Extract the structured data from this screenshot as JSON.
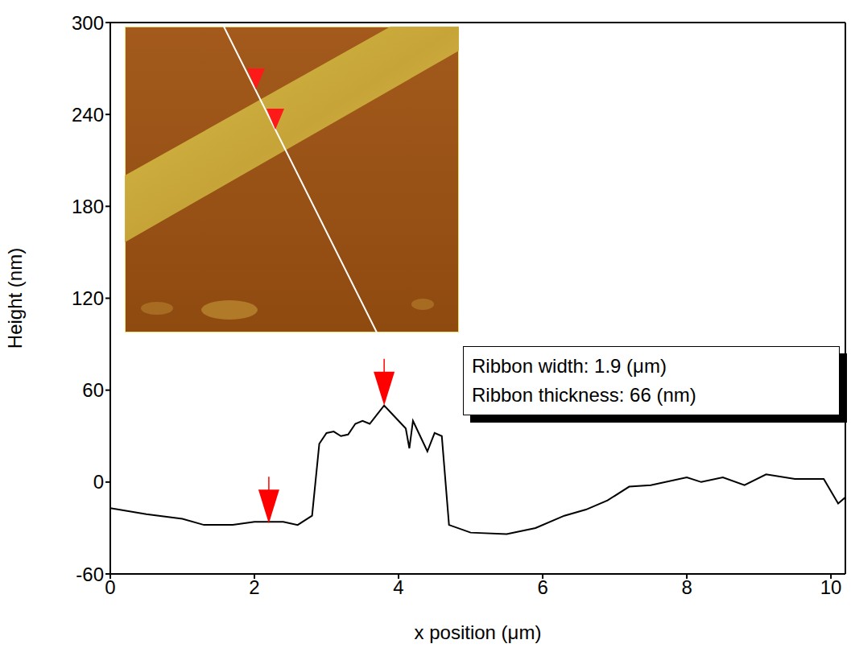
{
  "chart_data": {
    "type": "line",
    "x_label": "x position (μm)",
    "y_label": "Height (nm)",
    "xlim": [
      0,
      10.2
    ],
    "ylim": [
      -60,
      300
    ],
    "xticks": [
      0,
      2,
      4,
      6,
      8,
      10
    ],
    "yticks": [
      -60,
      0,
      60,
      120,
      180,
      240,
      300
    ],
    "color": "#000000",
    "x": [
      0,
      0.5,
      1.0,
      1.3,
      1.7,
      2.0,
      2.4,
      2.6,
      2.8,
      2.9,
      3.0,
      3.1,
      3.2,
      3.3,
      3.4,
      3.5,
      3.6,
      3.7,
      3.8,
      3.9,
      4.0,
      4.1,
      4.15,
      4.2,
      4.3,
      4.4,
      4.5,
      4.6,
      4.7,
      5.0,
      5.5,
      5.9,
      6.3,
      6.6,
      6.9,
      7.2,
      7.5,
      8.0,
      8.2,
      8.5,
      8.8,
      9.1,
      9.5,
      9.9,
      10.1,
      10.2
    ],
    "values": [
      -17,
      -21,
      -24,
      -28,
      -28,
      -26,
      -26,
      -28,
      -22,
      25,
      32,
      33,
      30,
      31,
      38,
      40,
      38,
      44,
      50,
      45,
      40,
      35,
      22,
      40,
      30,
      20,
      32,
      30,
      -28,
      -33,
      -34,
      -30,
      -22,
      -18,
      -12,
      -3,
      -2,
      3,
      0,
      3,
      -2,
      5,
      2,
      2,
      -14,
      -10
    ],
    "markers": {
      "x": [
        2.2,
        3.8
      ],
      "y": [
        -27,
        50
      ],
      "color": "#ff0000",
      "marker": "arrow"
    },
    "annotations": [
      "Ribbon width: 1.9 (μm)",
      "Ribbon thickness: 66 (nm)"
    ]
  }
}
